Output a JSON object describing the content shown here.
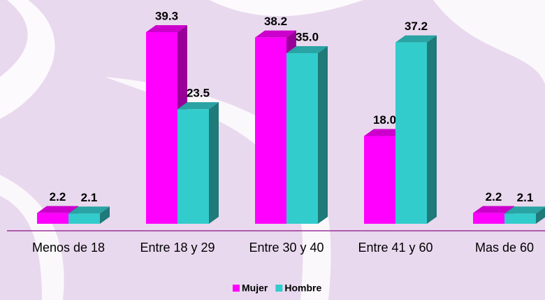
{
  "chart_data": {
    "type": "bar3d",
    "categories": [
      "Menos de 18",
      "Entre 18 y 29",
      "Entre 30 y 40",
      "Entre 41 y 60",
      "Mas de 60"
    ],
    "series": [
      {
        "name": "Mujer",
        "color": "#ff00ff",
        "values": [
          2.2,
          39.3,
          38.2,
          18.0,
          2.2
        ],
        "value_labels": [
          "2.2",
          "39.3",
          "38.2",
          "18.0",
          "2.2"
        ]
      },
      {
        "name": "Hombre",
        "color": "#33cccc",
        "values": [
          2.1,
          23.5,
          35.0,
          37.2,
          2.1
        ],
        "value_labels": [
          "2.1",
          "23.5",
          "35.0",
          "37.2",
          "2.1"
        ]
      }
    ],
    "legend": "bottom"
  }
}
